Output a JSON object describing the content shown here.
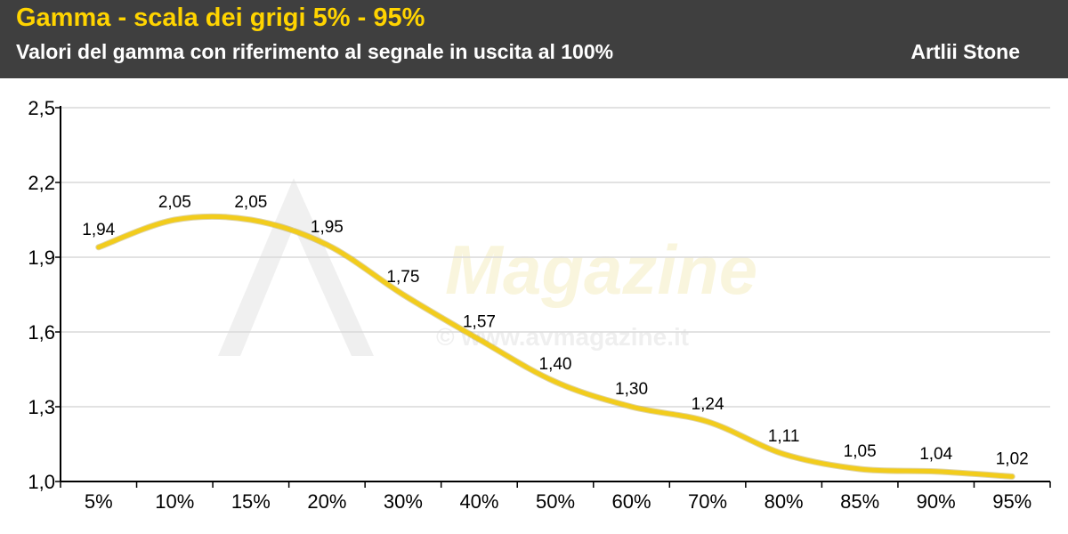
{
  "header": {
    "title": "Gamma - scala dei grigi 5% - 95%",
    "subtitle": "Valori del gamma con riferimento al segnale in uscita al 100%",
    "author": "Artlii Stone"
  },
  "watermark": {
    "brand": "AV Magazine",
    "url": "© www.avmagazine.it"
  },
  "colors": {
    "header_bg": "#3f3f3f",
    "title": "#ffd400",
    "line": "#f2cc1c",
    "grid": "#d9d9d9"
  },
  "chart_data": {
    "type": "line",
    "title": "Gamma - scala dei grigi 5% - 95%",
    "subtitle": "Valori del gamma con riferimento al segnale in uscita al 100%",
    "categories": [
      "5%",
      "10%",
      "15%",
      "20%",
      "30%",
      "40%",
      "50%",
      "60%",
      "70%",
      "80%",
      "85%",
      "90%",
      "95%"
    ],
    "series": [
      {
        "values": [
          1.94,
          2.05,
          2.05,
          1.95,
          1.75,
          1.57,
          1.4,
          1.3,
          1.24,
          1.11,
          1.05,
          1.04,
          1.02
        ],
        "labels": [
          "1,94",
          "2,05",
          "2,05",
          "1,95",
          "1,75",
          "1,57",
          "1,40",
          "1,30",
          "1,24",
          "1,11",
          "1,05",
          "1,04",
          "1,02"
        ]
      }
    ],
    "ylim": [
      1.0,
      2.5
    ],
    "yticks": [
      1.0,
      1.3,
      1.6,
      1.9,
      2.2,
      2.5
    ],
    "ytick_labels": [
      "1,0",
      "1,3",
      "1,6",
      "1,9",
      "2,2",
      "2,5"
    ],
    "grid": true,
    "smooth": true
  }
}
